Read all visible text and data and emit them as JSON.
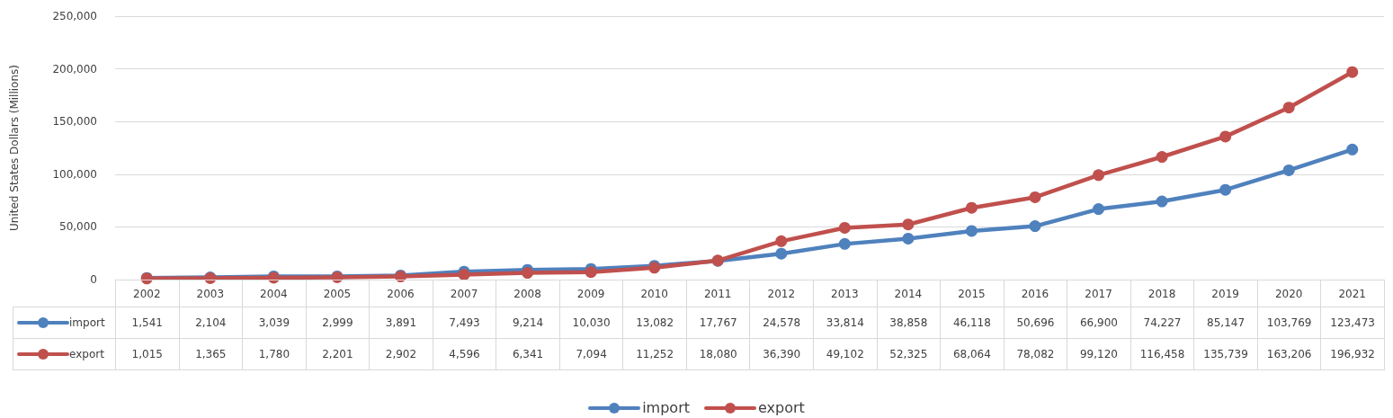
{
  "chart_data": {
    "type": "line",
    "ylabel": "United States Dollars (Millions)",
    "categories": [
      "2002",
      "2003",
      "2004",
      "2005",
      "2006",
      "2007",
      "2008",
      "2009",
      "2010",
      "2011",
      "2012",
      "2013",
      "2014",
      "2015",
      "2016",
      "2017",
      "2018",
      "2019",
      "2020",
      "2021"
    ],
    "series": [
      {
        "name": "import",
        "color": "#4f81bd",
        "values": [
          1541,
          2104,
          3039,
          2999,
          3891,
          7493,
          9214,
          10030,
          13082,
          17767,
          24578,
          33814,
          38858,
          46118,
          50696,
          66900,
          74227,
          85147,
          103769,
          123473
        ],
        "value_labels": [
          "1,541",
          "2,104",
          "3,039",
          "2,999",
          "3,891",
          "7,493",
          "9,214",
          "10,030",
          "13,082",
          "17,767",
          "24,578",
          "33,814",
          "38,858",
          "46,118",
          "50,696",
          "66,900",
          "74,227",
          "85,147",
          "103,769",
          "123,473"
        ]
      },
      {
        "name": "export",
        "color": "#c0504d",
        "values": [
          1015,
          1365,
          1780,
          2201,
          2902,
          4596,
          6341,
          7094,
          11252,
          18080,
          36390,
          49102,
          52325,
          68064,
          78082,
          99120,
          116458,
          135739,
          163206,
          196932
        ],
        "value_labels": [
          "1,015",
          "1,365",
          "1,780",
          "2,201",
          "2,902",
          "4,596",
          "6,341",
          "7,094",
          "11,252",
          "18,080",
          "36,390",
          "49,102",
          "52,325",
          "68,064",
          "78,082",
          "99,120",
          "116,458",
          "135,739",
          "163,206",
          "196,932"
        ]
      }
    ],
    "ylim": [
      0,
      250000
    ],
    "yticks": [
      0,
      {
        "value": 50000,
        "label": "50,000"
      },
      {
        "value": 100000,
        "label": "100,000"
      },
      {
        "value": 150000,
        "label": "150,000"
      },
      {
        "value": 200000,
        "label": "200,000"
      },
      {
        "value": 250000,
        "label": "250,000"
      }
    ],
    "grid": "y",
    "legend": "bottom",
    "marker": "circle",
    "line_style": "solid"
  }
}
